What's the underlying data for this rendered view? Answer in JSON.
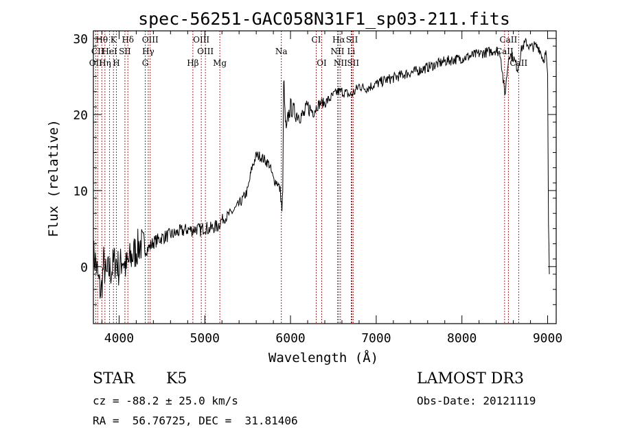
{
  "chart_data": {
    "type": "line",
    "title": "spec-56251-GAC058N31F1_sp03-211.fits",
    "xlabel": "Wavelength (Å)",
    "ylabel": "Flux (relative)",
    "xlim": [
      3700,
      9100
    ],
    "ylim": [
      -7.5,
      31
    ],
    "x_ticks": [
      4000,
      5000,
      6000,
      7000,
      8000,
      9000
    ],
    "y_ticks": [
      0,
      10,
      20,
      30
    ],
    "line_color": "#000000",
    "marker_color": "#aa0000",
    "series": [
      {
        "x": [
          3700,
          3730,
          3760,
          3790,
          3820,
          3850,
          3880,
          3910,
          3940,
          3970,
          4000,
          4040,
          4080,
          4120,
          4160,
          4200,
          4250,
          4300,
          4350,
          4400,
          4450,
          4500,
          4550,
          4600,
          4650,
          4700,
          4750,
          4800,
          4850,
          4900,
          4950,
          5000,
          5050,
          5100,
          5150,
          5200,
          5250,
          5300,
          5350,
          5400,
          5450,
          5500,
          5550,
          5600,
          5650,
          5700,
          5750,
          5800,
          5850,
          5880,
          5900,
          5910,
          5920,
          5935,
          5950,
          5970,
          6000,
          6050,
          6100,
          6150,
          6200,
          6250,
          6300,
          6350,
          6400,
          6450,
          6500,
          6550,
          6600,
          6650,
          6700,
          6750,
          6800,
          6850,
          6900,
          6950,
          7000,
          7100,
          7200,
          7300,
          7400,
          7500,
          7600,
          7700,
          7800,
          7900,
          8000,
          8100,
          8200,
          8300,
          8400,
          8450,
          8500,
          8550,
          8600,
          8650,
          8700,
          8750,
          8800,
          8850,
          8900,
          8950,
          8980,
          9000,
          9010,
          9020
        ],
        "values": [
          1.5,
          0.5,
          -2.0,
          -3.5,
          0.5,
          -1.5,
          -0.5,
          -0.5,
          0.5,
          0.8,
          -0.5,
          1.2,
          -0.2,
          0.8,
          1.5,
          2.2,
          3.0,
          2.2,
          2.5,
          3.2,
          3.5,
          3.8,
          4.0,
          4.2,
          4.3,
          4.6,
          4.7,
          4.9,
          4.8,
          5.0,
          4.8,
          5.2,
          4.9,
          5.2,
          5.3,
          6.2,
          6.5,
          7.0,
          7.5,
          8.2,
          9.0,
          10.0,
          13.0,
          14.6,
          14.5,
          14.0,
          13.5,
          11.5,
          11.0,
          10.0,
          7.5,
          9.5,
          25.2,
          20.0,
          17.5,
          19.5,
          21.0,
          20.2,
          20.0,
          19.8,
          21.0,
          20.5,
          21.0,
          21.5,
          21.5,
          22.0,
          22.5,
          23.0,
          23.0,
          22.8,
          22.5,
          23.0,
          23.8,
          23.5,
          23.5,
          23.8,
          24.0,
          24.5,
          24.8,
          25.2,
          25.5,
          25.8,
          26.2,
          26.6,
          27.0,
          27.2,
          27.4,
          27.7,
          28.0,
          28.2,
          28.5,
          28.0,
          22.5,
          28.0,
          27.5,
          26.0,
          28.8,
          29.5,
          28.8,
          29.0,
          28.8,
          27.2,
          28.0,
          25.0,
          5.5,
          -1.0
        ]
      }
    ],
    "line_markers": [
      {
        "label": "Hθ",
        "row": 1,
        "x": 3798
      },
      {
        "label": "K",
        "row": 1,
        "x": 3934
      },
      {
        "label": "Hδ",
        "row": 1,
        "x": 4102
      },
      {
        "label": "OIII",
        "row": 1,
        "x": 4363
      },
      {
        "label": "OIII",
        "row": 1,
        "x": 4959
      },
      {
        "label": "CI",
        "row": 1,
        "x": 6300
      },
      {
        "label": "Hα",
        "row": 1,
        "x": 6563
      },
      {
        "label": "SII",
        "row": 1,
        "x": 6717
      },
      {
        "label": "CaII",
        "row": 1,
        "x": 8542
      },
      {
        "label": "CII",
        "row": 2,
        "x": 3750
      },
      {
        "label": "HeI",
        "row": 2,
        "x": 3889
      },
      {
        "label": "SII",
        "row": 2,
        "x": 4068
      },
      {
        "label": "Hγ",
        "row": 2,
        "x": 4340
      },
      {
        "label": "OIII",
        "row": 2,
        "x": 5007
      },
      {
        "label": "Na",
        "row": 2,
        "x": 5893
      },
      {
        "label": "NII",
        "row": 2,
        "x": 6548
      },
      {
        "label": "Li",
        "row": 2,
        "x": 6708
      },
      {
        "label": "CaII",
        "row": 2,
        "x": 8498
      },
      {
        "label": "OII",
        "row": 3,
        "x": 3727
      },
      {
        "label": "Hη",
        "row": 3,
        "x": 3835
      },
      {
        "label": "H",
        "row": 3,
        "x": 3968
      },
      {
        "label": "G",
        "row": 3,
        "x": 4305
      },
      {
        "label": "Hβ",
        "row": 3,
        "x": 4861
      },
      {
        "label": "Mg",
        "row": 3,
        "x": 5175
      },
      {
        "label": "OI",
        "row": 3,
        "x": 6364
      },
      {
        "label": "NII",
        "row": 3,
        "x": 6583
      },
      {
        "label": "SII",
        "row": 3,
        "x": 6731
      },
      {
        "label": "CaII",
        "row": 3,
        "x": 8662
      }
    ]
  },
  "info": {
    "class_label": "STAR",
    "subclass": "K5",
    "survey": "LAMOST DR3",
    "cz": "cz = -88.2 ± 25.0 km/s",
    "obs_date": "Obs-Date: 20121119",
    "coords": "RA =  56.76725, DEC =  31.81406"
  }
}
